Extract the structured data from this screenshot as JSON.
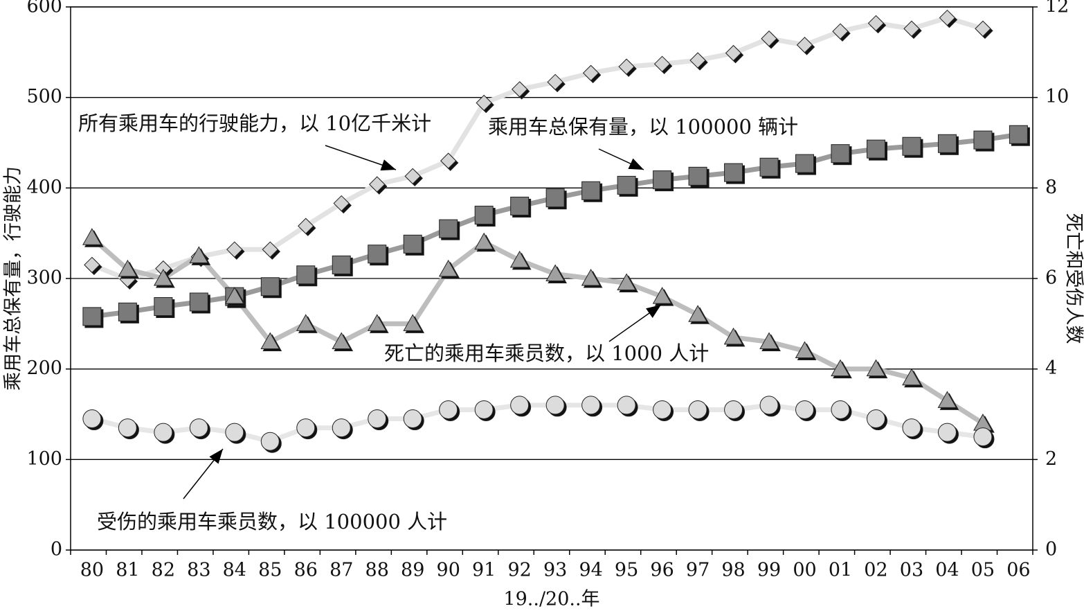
{
  "chart_data": {
    "type": "line",
    "x_label": "19../20..年",
    "y_label": "乘用车总保有量，行驶能力",
    "y2_label": "死亡和受伤人数",
    "categories": [
      "80",
      "81",
      "82",
      "83",
      "84",
      "85",
      "86",
      "87",
      "88",
      "89",
      "90",
      "91",
      "92",
      "93",
      "94",
      "95",
      "96",
      "97",
      "98",
      "99",
      "00",
      "01",
      "02",
      "03",
      "04",
      "05",
      "06"
    ],
    "ylim": [
      0,
      600
    ],
    "yticks": [
      0,
      100,
      200,
      300,
      400,
      500,
      600
    ],
    "y2lim": [
      0,
      12
    ],
    "y2ticks": [
      0,
      2,
      4,
      6,
      8,
      10,
      12
    ],
    "grid": true,
    "series": [
      {
        "name": "所有乘用车的行驶能力，以 10亿千米计",
        "color": "#d4d4d4",
        "line_color": "#e2e2e2",
        "marker": "diamond",
        "values": [
          315,
          299,
          311,
          324,
          332,
          332,
          358,
          383,
          404,
          413,
          430,
          494,
          509,
          517,
          527,
          534,
          537,
          541,
          549,
          565,
          558,
          573,
          582,
          576,
          588,
          576,
          null
        ]
      },
      {
        "name": "乘用车总保有量，以 100000 辆计",
        "color": "#7a7a7a",
        "line_color": "#9a9a9a",
        "marker": "square",
        "values": [
          258,
          263,
          269,
          274,
          280,
          291,
          304,
          315,
          327,
          338,
          355,
          370,
          380,
          389,
          397,
          403,
          409,
          413,
          417,
          423,
          427,
          438,
          443,
          446,
          449,
          453,
          459
        ]
      },
      {
        "name": "死亡的乘用车乘员数，以 1000 人计",
        "color": "#a0a0a0",
        "line_color": "#bdbdbd",
        "marker": "triangle",
        "axis": "y2",
        "values": [
          6.9,
          6.2,
          6.0,
          6.5,
          5.6,
          4.6,
          5.0,
          4.6,
          5.0,
          5.0,
          6.2,
          6.8,
          6.4,
          6.1,
          6.0,
          5.9,
          5.6,
          5.2,
          4.7,
          4.6,
          4.4,
          4.0,
          4.0,
          3.8,
          3.3,
          2.8,
          null
        ]
      },
      {
        "name": "受伤的乘用车乘员数，以 100000 人计",
        "color": "#dcdcdc",
        "line_color": "#e6e6e6",
        "marker": "circle",
        "axis": "y2",
        "values": [
          2.9,
          2.7,
          2.6,
          2.7,
          2.6,
          2.4,
          2.7,
          2.7,
          2.9,
          2.9,
          3.1,
          3.1,
          3.2,
          3.2,
          3.2,
          3.2,
          3.1,
          3.1,
          3.1,
          3.2,
          3.1,
          3.1,
          2.9,
          2.7,
          2.6,
          2.5,
          null
        ]
      }
    ]
  }
}
